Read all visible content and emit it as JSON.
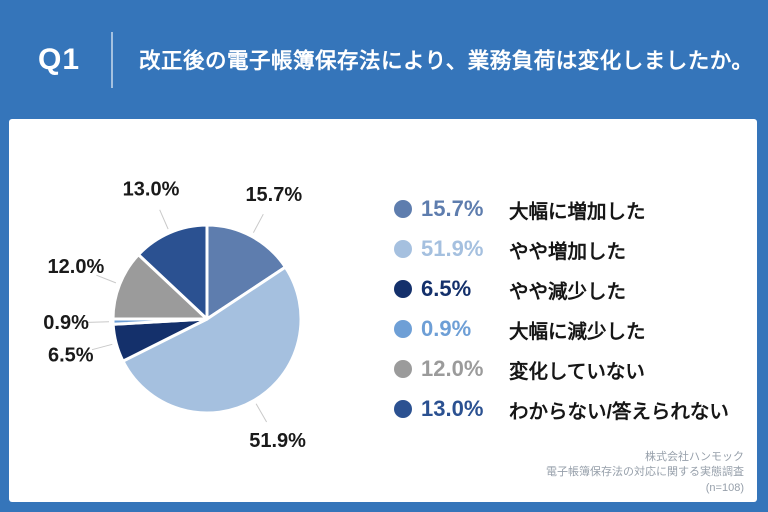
{
  "header": {
    "q_label": "Q1",
    "title": "改正後の電子帳簿保存法により、業務負荷は変化しましたか。"
  },
  "chart_data": {
    "type": "pie",
    "title": "改正後の電子帳簿保存法により、業務負荷は変化しましたか。",
    "start_angle_deg": 0,
    "direction": "clockwise",
    "data_labels": "outside",
    "legend_position": "right",
    "slices": [
      {
        "label": "大幅に増加した",
        "value": 15.7,
        "pct_label": "15.7%",
        "color": "#5E7DAE"
      },
      {
        "label": "やや増加した",
        "value": 51.9,
        "pct_label": "51.9%",
        "color": "#A5C0DF"
      },
      {
        "label": "やや減少した",
        "value": 6.5,
        "pct_label": "6.5%",
        "color": "#14306B"
      },
      {
        "label": "大幅に減少した",
        "value": 0.9,
        "pct_label": "0.9%",
        "color": "#6E9FD6"
      },
      {
        "label": "変化していない",
        "value": 12.0,
        "pct_label": "12.0%",
        "color": "#9B9B9B"
      },
      {
        "label": "わからない/答えられない",
        "value": 13.0,
        "pct_label": "13.0%",
        "color": "#2B5191"
      }
    ]
  },
  "footer": {
    "company": "株式会社ハンモック",
    "survey": "電子帳簿保存法の対応に関する実態調査",
    "sample": "(n=108)"
  },
  "colors": {
    "background": "#3575BA",
    "card": "#FFFFFF",
    "header_text": "#FFFFFF",
    "divider": "#FFFFFF",
    "pie_label_text": "#1A1A1A",
    "legend_label_text": "#161616",
    "leader_line": "#C9C9C9",
    "slice_border": "#FFFFFF",
    "footer_text": "#97A0AB"
  }
}
